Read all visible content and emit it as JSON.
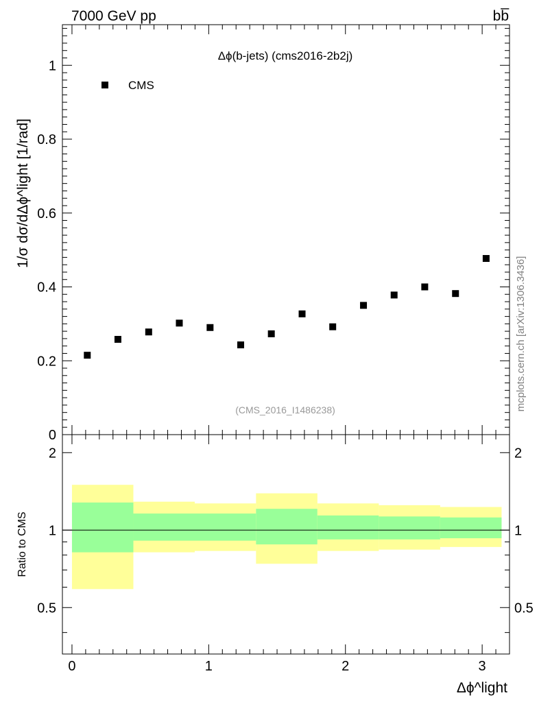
{
  "header": {
    "energy_label": "7000 GeV pp",
    "process_label": "bb̅"
  },
  "side_label": "mcplots.cern.ch [arXiv:1306.3436]",
  "chart_data": [
    {
      "type": "scatter",
      "title": "Δϕ(b-jets) (cms2016-2b2j)",
      "ylabel": "1/σ dσ/dΔϕ^light [1/rad]",
      "xlabel": "Δϕ^light",
      "analysis_id": "(CMS_2016_I1486238)",
      "legend": {
        "entries": [
          "CMS"
        ],
        "placement": "top-left"
      },
      "xlim": [
        -0.07,
        3.2
      ],
      "ylim": [
        0,
        1.11
      ],
      "yticks": [
        "0",
        "0.2",
        "0.4",
        "0.6",
        "0.8",
        "1"
      ],
      "series": [
        {
          "name": "CMS",
          "x": [
            0.112,
            0.336,
            0.561,
            0.785,
            1.01,
            1.234,
            1.458,
            1.683,
            1.907,
            2.132,
            2.356,
            2.58,
            2.805,
            3.029
          ],
          "values": [
            0.215,
            0.258,
            0.278,
            0.302,
            0.29,
            0.243,
            0.273,
            0.327,
            0.292,
            0.35,
            0.378,
            0.4,
            0.382,
            0.477
          ]
        }
      ]
    },
    {
      "type": "area",
      "ylabel": "Ratio to CMS",
      "xlim": [
        -0.07,
        3.2
      ],
      "ylim": [
        0.33,
        2.35
      ],
      "yticks": [
        "0.5",
        "1",
        "2"
      ],
      "xticks": [
        "0",
        "1",
        "2",
        "3"
      ],
      "bin_edges": [
        0.0,
        0.449,
        0.898,
        1.346,
        1.795,
        2.244,
        2.693,
        3.142
      ],
      "band_outer": {
        "color": "#ffff99",
        "low": [
          0.59,
          0.82,
          0.83,
          0.74,
          0.83,
          0.84,
          0.86
        ],
        "high": [
          1.5,
          1.29,
          1.27,
          1.39,
          1.27,
          1.25,
          1.23
        ]
      },
      "band_inner": {
        "color": "#99ff99",
        "low": [
          0.82,
          0.91,
          0.91,
          0.88,
          0.92,
          0.92,
          0.93
        ],
        "high": [
          1.28,
          1.16,
          1.16,
          1.21,
          1.14,
          1.13,
          1.12
        ]
      },
      "reference_line": 1
    }
  ]
}
